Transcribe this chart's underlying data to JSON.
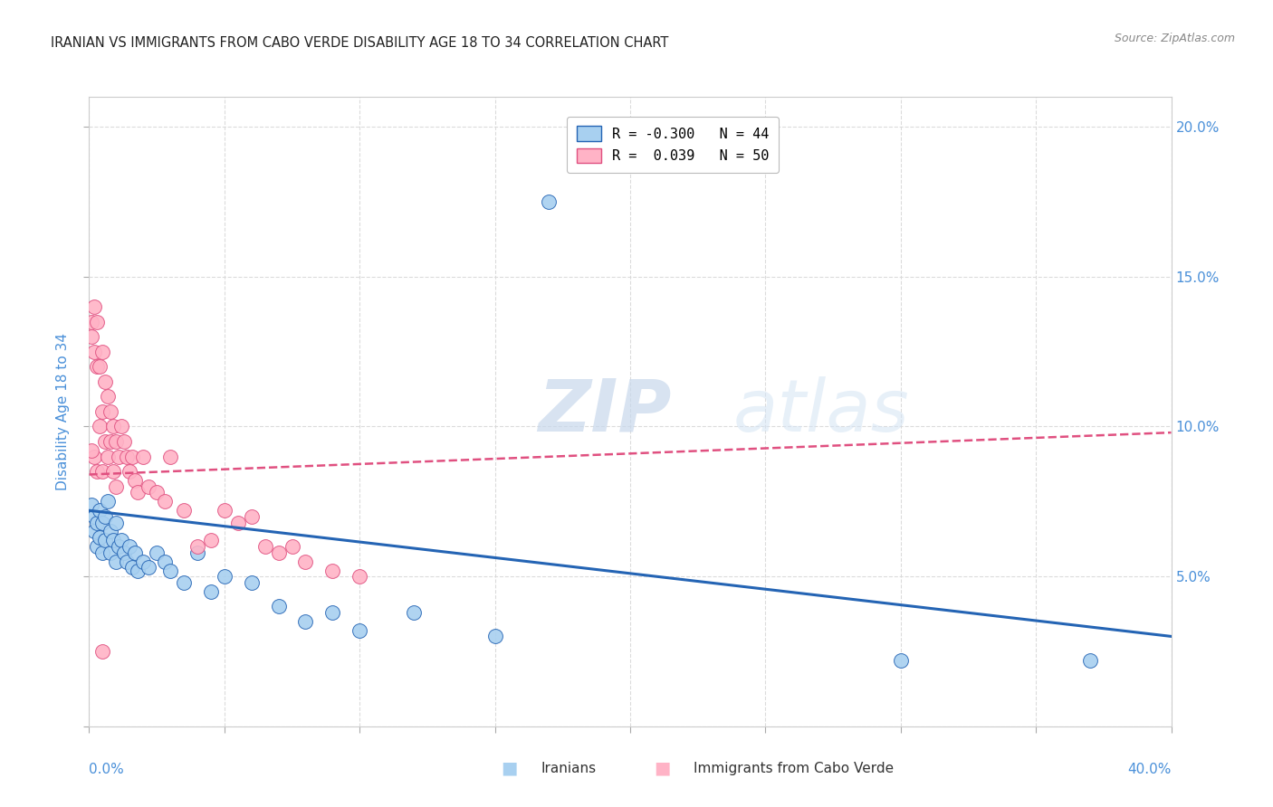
{
  "title": "IRANIAN VS IMMIGRANTS FROM CABO VERDE DISABILITY AGE 18 TO 34 CORRELATION CHART",
  "source": "Source: ZipAtlas.com",
  "ylabel": "Disability Age 18 to 34",
  "watermark_zip": "ZIP",
  "watermark_atlas": "atlas",
  "xmin": 0.0,
  "xmax": 0.4,
  "ymin": 0.0,
  "ymax": 0.21,
  "yticks": [
    0.0,
    0.05,
    0.1,
    0.15,
    0.2
  ],
  "ytick_labels_right": [
    "5.0%",
    "10.0%",
    "15.0%",
    "20.0%"
  ],
  "xtick_positions": [
    0.0,
    0.05,
    0.1,
    0.15,
    0.2,
    0.25,
    0.3,
    0.35,
    0.4
  ],
  "iranians_color": "#a8d0f0",
  "cabo_verde_color": "#ffb3c6",
  "trend_iranian_color": "#2464b4",
  "trend_cabo_color": "#e05080",
  "legend_iranian_label": "R = -0.300   N = 44",
  "legend_cabo_label": "R =  0.039   N = 50",
  "iranians_x": [
    0.001,
    0.002,
    0.002,
    0.003,
    0.003,
    0.004,
    0.004,
    0.005,
    0.005,
    0.006,
    0.006,
    0.007,
    0.008,
    0.008,
    0.009,
    0.01,
    0.01,
    0.011,
    0.012,
    0.013,
    0.014,
    0.015,
    0.016,
    0.017,
    0.018,
    0.02,
    0.022,
    0.025,
    0.028,
    0.03,
    0.035,
    0.04,
    0.045,
    0.05,
    0.06,
    0.07,
    0.08,
    0.09,
    0.1,
    0.12,
    0.15,
    0.17,
    0.3,
    0.37
  ],
  "iranians_y": [
    0.074,
    0.07,
    0.065,
    0.068,
    0.06,
    0.072,
    0.063,
    0.068,
    0.058,
    0.07,
    0.062,
    0.075,
    0.065,
    0.058,
    0.062,
    0.068,
    0.055,
    0.06,
    0.062,
    0.058,
    0.055,
    0.06,
    0.053,
    0.058,
    0.052,
    0.055,
    0.053,
    0.058,
    0.055,
    0.052,
    0.048,
    0.058,
    0.045,
    0.05,
    0.048,
    0.04,
    0.035,
    0.038,
    0.032,
    0.038,
    0.03,
    0.175,
    0.022,
    0.022
  ],
  "cabo_verde_x": [
    0.001,
    0.001,
    0.002,
    0.002,
    0.002,
    0.003,
    0.003,
    0.003,
    0.004,
    0.004,
    0.005,
    0.005,
    0.005,
    0.006,
    0.006,
    0.007,
    0.007,
    0.008,
    0.008,
    0.009,
    0.009,
    0.01,
    0.01,
    0.011,
    0.012,
    0.013,
    0.014,
    0.015,
    0.016,
    0.017,
    0.018,
    0.02,
    0.022,
    0.025,
    0.028,
    0.03,
    0.035,
    0.04,
    0.045,
    0.05,
    0.055,
    0.06,
    0.065,
    0.07,
    0.075,
    0.08,
    0.09,
    0.1,
    0.005,
    0.001
  ],
  "cabo_verde_y": [
    0.135,
    0.13,
    0.14,
    0.125,
    0.09,
    0.135,
    0.12,
    0.085,
    0.12,
    0.1,
    0.125,
    0.105,
    0.085,
    0.115,
    0.095,
    0.11,
    0.09,
    0.105,
    0.095,
    0.1,
    0.085,
    0.095,
    0.08,
    0.09,
    0.1,
    0.095,
    0.09,
    0.085,
    0.09,
    0.082,
    0.078,
    0.09,
    0.08,
    0.078,
    0.075,
    0.09,
    0.072,
    0.06,
    0.062,
    0.072,
    0.068,
    0.07,
    0.06,
    0.058,
    0.06,
    0.055,
    0.052,
    0.05,
    0.025,
    0.092
  ],
  "iran_trend_x0": 0.0,
  "iran_trend_y0": 0.072,
  "iran_trend_x1": 0.4,
  "iran_trend_y1": 0.03,
  "cabo_trend_x0": 0.0,
  "cabo_trend_y0": 0.084,
  "cabo_trend_x1": 0.4,
  "cabo_trend_y1": 0.098
}
